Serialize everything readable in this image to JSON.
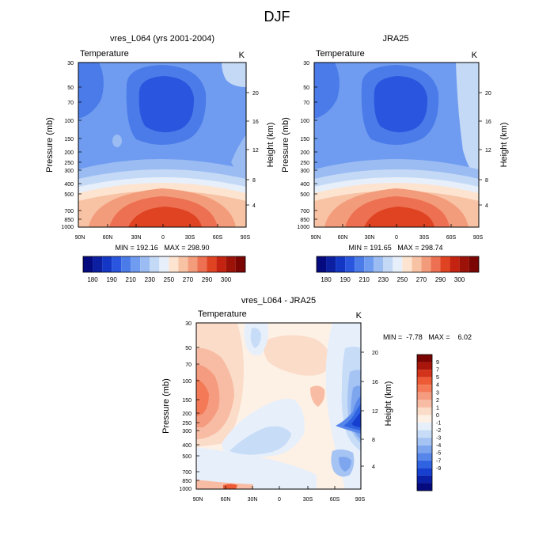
{
  "figure": {
    "title": "DJF"
  },
  "chart_data": [
    {
      "type": "heatmap",
      "title": "vres_L064 (yrs 2001-2004)",
      "left_label": "Temperature",
      "right_label": "K",
      "xlabel": "",
      "ylabel": "Pressure (mb)",
      "ylabel_right": "Height (km)",
      "x_ticks": [
        "90N",
        "60N",
        "30N",
        "0",
        "30S",
        "60S",
        "90S"
      ],
      "y_ticks": [
        "30",
        "50",
        "70",
        "100",
        "150",
        "200",
        "250",
        "300",
        "400",
        "500",
        "700",
        "850",
        "1000"
      ],
      "y_ticks_right": [
        "20",
        "16",
        "12",
        "8",
        "4"
      ],
      "stats": "MIN = 192.16   MAX = 298.90",
      "min": 192.16,
      "max": 298.9,
      "colorbar": {
        "orientation": "horizontal",
        "colors": [
          "#050a7f",
          "#0c1fa0",
          "#1436c4",
          "#2a56df",
          "#4a7be8",
          "#6f9cf0",
          "#9bbcf3",
          "#c4d9f6",
          "#e7effb",
          "#fde4d0",
          "#f8c2a4",
          "#f39c7b",
          "#ec7051",
          "#df4322",
          "#c32310",
          "#9c1208",
          "#7a0503"
        ],
        "labels": [
          "180",
          "190",
          "210",
          "230",
          "250",
          "270",
          "290",
          "300"
        ]
      }
    },
    {
      "type": "heatmap",
      "title": "JRA25",
      "left_label": "Temperature",
      "right_label": "K",
      "xlabel": "",
      "ylabel": "Pressure (mb)",
      "ylabel_right": "Height (km)",
      "x_ticks": [
        "90N",
        "60N",
        "30N",
        "0",
        "30S",
        "60S",
        "90S"
      ],
      "y_ticks": [
        "30",
        "50",
        "70",
        "100",
        "150",
        "200",
        "250",
        "300",
        "400",
        "500",
        "700",
        "850",
        "1000"
      ],
      "y_ticks_right": [
        "20",
        "16",
        "12",
        "8",
        "4"
      ],
      "stats": "MIN = 191.65   MAX = 298.74",
      "min": 191.65,
      "max": 298.74,
      "colorbar": {
        "orientation": "horizontal",
        "colors": [
          "#050a7f",
          "#0c1fa0",
          "#1436c4",
          "#2a56df",
          "#4a7be8",
          "#6f9cf0",
          "#9bbcf3",
          "#c4d9f6",
          "#e7effb",
          "#fde4d0",
          "#f8c2a4",
          "#f39c7b",
          "#ec7051",
          "#df4322",
          "#c32310",
          "#9c1208",
          "#7a0503"
        ],
        "labels": [
          "180",
          "190",
          "210",
          "230",
          "250",
          "270",
          "290",
          "300"
        ]
      }
    },
    {
      "type": "heatmap",
      "title": "vres_L064 - JRA25",
      "left_label": "Temperature",
      "right_label": "K",
      "xlabel": "",
      "ylabel": "Pressure (mb)",
      "ylabel_right": "Height (km)",
      "x_ticks": [
        "90N",
        "60N",
        "30N",
        "0",
        "30S",
        "60S",
        "90S"
      ],
      "y_ticks": [
        "30",
        "50",
        "70",
        "100",
        "150",
        "200",
        "250",
        "300",
        "400",
        "500",
        "700",
        "850",
        "1000"
      ],
      "y_ticks_right": [
        "20",
        "16",
        "12",
        "8",
        "4"
      ],
      "stats": "MIN =  -7.78   MAX =    6.02",
      "min": -7.78,
      "max": 6.02,
      "colorbar": {
        "orientation": "vertical",
        "colors": [
          "#7a0503",
          "#a8150a",
          "#d2331a",
          "#ec5a36",
          "#f47a57",
          "#f59c80",
          "#f8bca4",
          "#fbdcc9",
          "#fdf1e6",
          "#e7effb",
          "#c7dcf7",
          "#a5c3f3",
          "#7ea6ef",
          "#5686ea",
          "#2f63e1",
          "#173fcf",
          "#0a20a6",
          "#050a7f"
        ],
        "labels": [
          "9",
          "7",
          "5",
          "4",
          "3",
          "2",
          "1",
          "0",
          "-1",
          "-2",
          "-3",
          "-4",
          "-5",
          "-7",
          "-9"
        ]
      }
    }
  ]
}
